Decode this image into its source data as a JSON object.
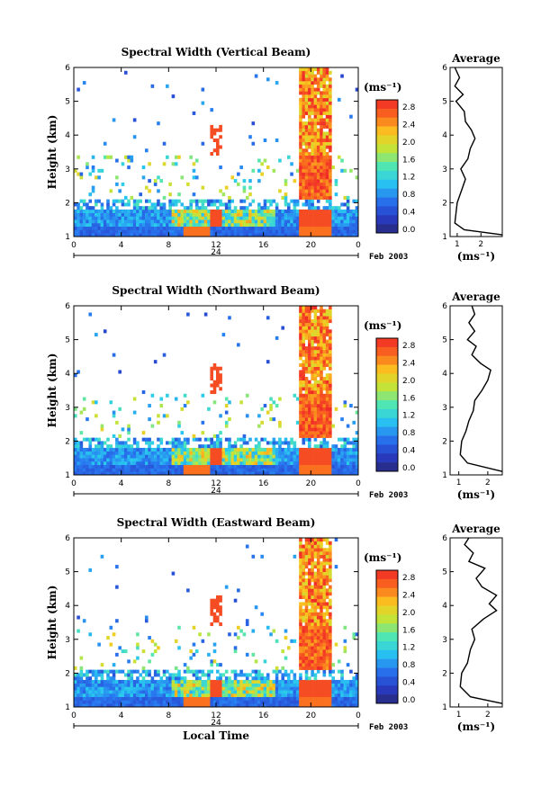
{
  "figure": {
    "date_label": "Feb 2003",
    "local_time_label": "Local Time",
    "day_label": "24",
    "cb_unit": "(ms⁻¹)",
    "avg_title": "Average",
    "avg_unit": "(ms⁻¹)"
  },
  "chart_data": [
    {
      "type": "heatmap",
      "title": "Spectral Width (Vertical Beam)",
      "ylabel": "Height (km)",
      "xticks": [
        "0",
        "4",
        "8",
        "12",
        "16",
        "20",
        "0"
      ],
      "yticks": [
        "1",
        "2",
        "3",
        "4",
        "5",
        "6"
      ],
      "xlim": [
        0,
        24
      ],
      "ylim": [
        1,
        6
      ],
      "colorbar": {
        "ticks": [
          "2.8",
          "2.4",
          "2.0",
          "1.6",
          "1.2",
          "0.8",
          "0.4",
          "0.0"
        ],
        "range": [
          0,
          3.0
        ]
      },
      "average": {
        "title": "Average",
        "xticks": [
          "1",
          "2"
        ],
        "xlim": [
          0.7,
          2.9
        ],
        "profile": [
          [
            2.9,
            1.05
          ],
          [
            1.3,
            1.2
          ],
          [
            0.9,
            1.4
          ],
          [
            0.95,
            1.7
          ],
          [
            1.0,
            2.0
          ],
          [
            1.2,
            2.4
          ],
          [
            1.35,
            2.7
          ],
          [
            1.15,
            3.0
          ],
          [
            1.45,
            3.3
          ],
          [
            1.55,
            3.6
          ],
          [
            1.75,
            3.9
          ],
          [
            1.6,
            4.15
          ],
          [
            1.35,
            4.4
          ],
          [
            1.3,
            4.7
          ],
          [
            0.95,
            5.0
          ],
          [
            1.25,
            5.2
          ],
          [
            0.9,
            5.45
          ],
          [
            1.1,
            5.7
          ],
          [
            0.9,
            6.0
          ]
        ]
      }
    },
    {
      "type": "heatmap",
      "title": "Spectral Width (Northward Beam)",
      "ylabel": "Height (km)",
      "xticks": [
        "0",
        "4",
        "8",
        "12",
        "16",
        "20",
        "0"
      ],
      "yticks": [
        "1",
        "2",
        "3",
        "4",
        "5",
        "6"
      ],
      "xlim": [
        0,
        24
      ],
      "ylim": [
        1,
        6
      ],
      "colorbar": {
        "ticks": [
          "2.8",
          "2.4",
          "2.0",
          "1.6",
          "1.2",
          "0.8",
          "0.4",
          "0.0"
        ],
        "range": [
          0,
          3.0
        ]
      },
      "average": {
        "title": "Average",
        "xticks": [
          "1",
          "2"
        ],
        "xlim": [
          0.7,
          2.5
        ],
        "profile": [
          [
            2.5,
            1.1
          ],
          [
            1.3,
            1.35
          ],
          [
            1.05,
            1.6
          ],
          [
            1.1,
            2.0
          ],
          [
            1.25,
            2.3
          ],
          [
            1.35,
            2.6
          ],
          [
            1.5,
            2.9
          ],
          [
            1.55,
            3.2
          ],
          [
            1.8,
            3.5
          ],
          [
            2.0,
            3.8
          ],
          [
            2.1,
            4.1
          ],
          [
            1.75,
            4.3
          ],
          [
            1.45,
            4.55
          ],
          [
            1.6,
            4.8
          ],
          [
            1.3,
            5.0
          ],
          [
            1.55,
            5.25
          ],
          [
            1.35,
            5.5
          ],
          [
            1.55,
            5.75
          ],
          [
            1.45,
            6.0
          ]
        ]
      }
    },
    {
      "type": "heatmap",
      "title": "Spectral Width (Eastward Beam)",
      "ylabel": "Height (km)",
      "xticks": [
        "0",
        "4",
        "8",
        "12",
        "16",
        "20",
        "0"
      ],
      "yticks": [
        "1",
        "2",
        "3",
        "4",
        "5",
        "6"
      ],
      "xlim": [
        0,
        24
      ],
      "ylim": [
        1,
        6
      ],
      "xlabel": "Local Time",
      "colorbar": {
        "ticks": [
          "2.8",
          "2.4",
          "2.0",
          "1.6",
          "1.2",
          "0.8",
          "0.4",
          "0.0"
        ],
        "range": [
          0,
          3.0
        ]
      },
      "average": {
        "title": "Average",
        "xticks": [
          "1",
          "2"
        ],
        "xlim": [
          0.7,
          2.5
        ],
        "profile": [
          [
            2.5,
            1.1
          ],
          [
            1.4,
            1.3
          ],
          [
            1.05,
            1.6
          ],
          [
            1.1,
            2.0
          ],
          [
            1.3,
            2.3
          ],
          [
            1.4,
            2.7
          ],
          [
            1.55,
            3.0
          ],
          [
            1.45,
            3.3
          ],
          [
            1.85,
            3.6
          ],
          [
            2.3,
            3.85
          ],
          [
            2.05,
            4.05
          ],
          [
            2.3,
            4.3
          ],
          [
            1.8,
            4.55
          ],
          [
            1.6,
            4.8
          ],
          [
            1.9,
            5.1
          ],
          [
            1.35,
            5.3
          ],
          [
            1.5,
            5.55
          ],
          [
            1.2,
            5.8
          ],
          [
            1.35,
            6.0
          ]
        ]
      }
    }
  ]
}
